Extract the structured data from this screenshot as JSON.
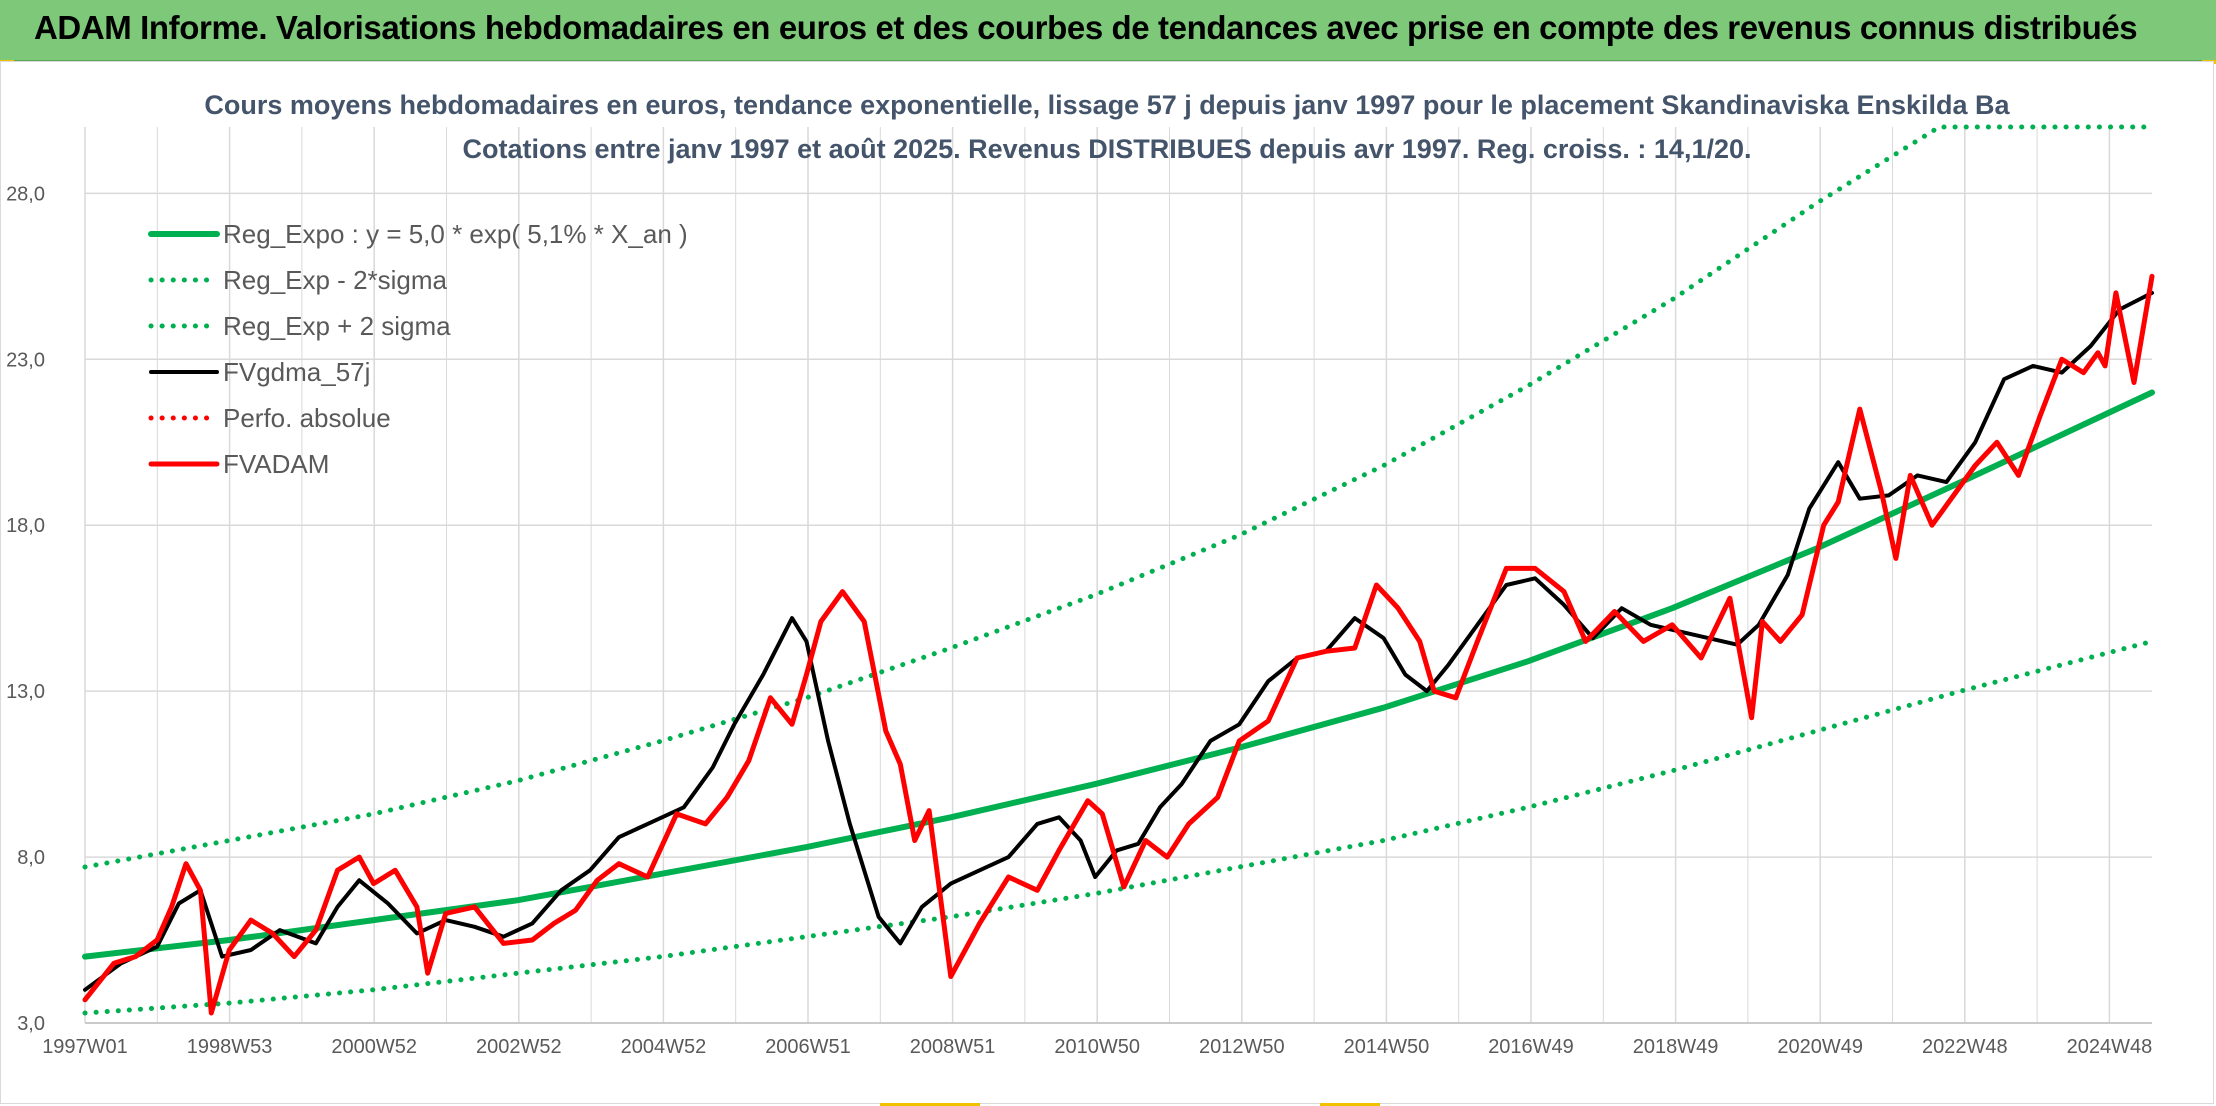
{
  "header": {
    "title": "ADAM Informe. Valorisations hebdomadaires en euros et des courbes de tendances avec prise en compte des revenus connus distribués"
  },
  "colors": {
    "header_bg": "#7ec87a",
    "trend": "#00b050",
    "smoothed": "#000000",
    "price": "#ff0000",
    "gridline": "#d9d9d9",
    "title_text": "#44546a"
  },
  "chart_data": {
    "type": "line",
    "title": "Cours moyens hebdomadaires en euros, tendance exponentielle, lissage 57 j depuis janv 1997 pour le placement Skandinaviska Enskilda Ba",
    "subtitle": "Cotations entre janv 1997 et août 2025. Revenus DISTRIBUES depuis avr 1997. Reg. croiss. : 14,1/20.",
    "x_tick_labels": [
      "1997W01",
      "1998W53",
      "2000W52",
      "2002W52",
      "2004W52",
      "2006W51",
      "2008W51",
      "2010W50",
      "2012W50",
      "2014W50",
      "2016W49",
      "2018W49",
      "2020W49",
      "2022W48",
      "2024W48"
    ],
    "y_tick_labels": [
      "3,0",
      "8,0",
      "13,0",
      "18,0",
      "23,0",
      "28,0"
    ],
    "ylim": [
      3,
      30
    ],
    "xlim": [
      1997.0,
      2025.65
    ],
    "grid": true,
    "legend_position": "top-left",
    "legend": [
      "Reg_Expo : y = 5,0 * exp( 5,1% *  X_an )",
      "Reg_Exp - 2*sigma",
      "Reg_Exp + 2 sigma",
      "FVgdma_57j",
      "Perfo. absolue",
      "FVADAM"
    ],
    "series": [
      {
        "name": "Reg_Expo : y = 5,0 * exp( 5,1% *  X_an )",
        "style": "solid",
        "color": "#00b050",
        "x": [
          1997.0,
          1999.0,
          2001.0,
          2003.0,
          2005.0,
          2007.0,
          2009.0,
          2011.0,
          2013.0,
          2015.0,
          2017.0,
          2019.0,
          2021.0,
          2023.0,
          2025.65
        ],
        "y": [
          5.0,
          5.5,
          6.1,
          6.7,
          7.5,
          8.3,
          9.2,
          10.2,
          11.3,
          12.5,
          13.9,
          15.5,
          17.3,
          19.3,
          22.0
        ]
      },
      {
        "name": "Reg_Exp - 2*sigma",
        "style": "dotted",
        "color": "#00b050",
        "x": [
          1997.0,
          1999.0,
          2001.0,
          2003.0,
          2005.0,
          2007.0,
          2009.0,
          2011.0,
          2013.0,
          2015.0,
          2017.0,
          2019.0,
          2021.0,
          2023.0,
          2025.65
        ],
        "y": [
          3.3,
          3.6,
          4.0,
          4.5,
          5.0,
          5.6,
          6.2,
          6.9,
          7.7,
          8.5,
          9.5,
          10.6,
          11.8,
          13.0,
          14.5
        ]
      },
      {
        "name": "Reg_Exp + 2 sigma",
        "style": "dotted",
        "color": "#00b050",
        "x": [
          1997.0,
          1999.0,
          2001.0,
          2003.0,
          2005.0,
          2007.0,
          2009.0,
          2011.0,
          2013.0,
          2015.0,
          2017.0,
          2019.0,
          2021.0,
          2022.7,
          2025.65
        ],
        "y": [
          7.7,
          8.5,
          9.3,
          10.3,
          11.5,
          12.8,
          14.3,
          15.9,
          17.7,
          19.8,
          22.2,
          24.8,
          27.7,
          30.0,
          30.0
        ]
      },
      {
        "name": "FVgdma_57j",
        "style": "solid",
        "color": "#000000",
        "x": [
          1997.0,
          1997.5,
          1998.0,
          1998.3,
          1998.6,
          1998.9,
          1999.3,
          1999.7,
          2000.2,
          2000.5,
          2000.8,
          2001.2,
          2001.6,
          2002.0,
          2002.4,
          2002.8,
          2003.2,
          2003.6,
          2004.0,
          2004.4,
          2004.8,
          2005.3,
          2005.7,
          2006.0,
          2006.4,
          2006.8,
          2007.0,
          2007.3,
          2007.6,
          2008.0,
          2008.3,
          2008.6,
          2009.0,
          2009.4,
          2009.8,
          2010.2,
          2010.5,
          2010.8,
          2011.0,
          2011.3,
          2011.6,
          2011.9,
          2012.2,
          2012.6,
          2013.0,
          2013.4,
          2013.8,
          2014.2,
          2014.6,
          2015.0,
          2015.3,
          2015.6,
          2015.9,
          2016.3,
          2016.7,
          2017.1,
          2017.5,
          2017.9,
          2018.3,
          2018.7,
          2019.1,
          2019.5,
          2019.9,
          2020.2,
          2020.6,
          2020.9,
          2021.3,
          2021.6,
          2022.0,
          2022.4,
          2022.8,
          2023.2,
          2023.6,
          2024.0,
          2024.4,
          2024.8,
          2025.2,
          2025.65
        ],
        "y": [
          4.0,
          4.8,
          5.3,
          6.6,
          7.0,
          5.0,
          5.2,
          5.8,
          5.4,
          6.5,
          7.3,
          6.6,
          5.7,
          6.1,
          5.9,
          5.6,
          6.0,
          7.0,
          7.6,
          8.6,
          9.0,
          9.5,
          10.7,
          12.0,
          13.5,
          15.2,
          14.5,
          11.5,
          9.0,
          6.2,
          5.4,
          6.5,
          7.2,
          7.6,
          8.0,
          9.0,
          9.2,
          8.5,
          7.4,
          8.2,
          8.4,
          9.5,
          10.2,
          11.5,
          12.0,
          13.3,
          14.0,
          14.2,
          15.2,
          14.6,
          13.5,
          13.0,
          13.8,
          15.0,
          16.2,
          16.4,
          15.6,
          14.6,
          15.5,
          15.0,
          14.8,
          14.6,
          14.4,
          15.0,
          16.5,
          18.5,
          19.9,
          18.8,
          18.9,
          19.5,
          19.3,
          20.5,
          22.4,
          22.8,
          22.6,
          23.4,
          24.5,
          25.0
        ]
      },
      {
        "name": "Perfo. absolue",
        "style": "dotted",
        "color": "#ff0000",
        "x": [],
        "y": []
      },
      {
        "name": "FVADAM",
        "style": "solid",
        "color": "#ff0000",
        "x": [
          1997.0,
          1997.4,
          1997.7,
          1998.0,
          1998.2,
          1998.4,
          1998.6,
          1998.75,
          1999.0,
          1999.3,
          1999.6,
          1999.9,
          2000.2,
          2000.5,
          2000.8,
          2001.0,
          2001.3,
          2001.6,
          2001.75,
          2002.0,
          2002.4,
          2002.8,
          2003.2,
          2003.5,
          2003.8,
          2004.1,
          2004.4,
          2004.8,
          2005.2,
          2005.6,
          2005.9,
          2006.2,
          2006.5,
          2006.8,
          2007.0,
          2007.2,
          2007.5,
          2007.8,
          2008.1,
          2008.3,
          2008.5,
          2008.7,
          2009.0,
          2009.4,
          2009.8,
          2010.2,
          2010.5,
          2010.9,
          2011.1,
          2011.4,
          2011.7,
          2012.0,
          2012.3,
          2012.7,
          2013.0,
          2013.4,
          2013.8,
          2014.2,
          2014.6,
          2014.9,
          2015.2,
          2015.5,
          2015.7,
          2016.0,
          2016.3,
          2016.7,
          2017.1,
          2017.5,
          2017.8,
          2018.2,
          2018.6,
          2019.0,
          2019.4,
          2019.8,
          2020.1,
          2020.25,
          2020.5,
          2020.8,
          2021.1,
          2021.3,
          2021.6,
          2021.9,
          2022.1,
          2022.3,
          2022.6,
          2022.9,
          2023.2,
          2023.5,
          2023.8,
          2024.1,
          2024.4,
          2024.7,
          2024.9,
          2025.0,
          2025.15,
          2025.4,
          2025.65
        ],
        "y": [
          3.7,
          4.8,
          5.0,
          5.5,
          6.5,
          7.8,
          7.0,
          3.3,
          5.2,
          6.1,
          5.7,
          5.0,
          5.8,
          7.6,
          8.0,
          7.2,
          7.6,
          6.5,
          4.5,
          6.3,
          6.5,
          5.4,
          5.5,
          6.0,
          6.4,
          7.3,
          7.8,
          7.4,
          9.3,
          9.0,
          9.8,
          10.9,
          12.8,
          12.0,
          13.5,
          15.1,
          16.0,
          15.1,
          11.8,
          10.8,
          8.5,
          9.4,
          4.4,
          6.0,
          7.4,
          7.0,
          8.2,
          9.7,
          9.3,
          7.1,
          8.5,
          8.0,
          9.0,
          9.8,
          11.5,
          12.1,
          14.0,
          14.2,
          14.3,
          16.2,
          15.5,
          14.5,
          13.0,
          12.8,
          14.5,
          16.7,
          16.7,
          16.0,
          14.5,
          15.4,
          14.5,
          15.0,
          14.0,
          15.8,
          12.2,
          15.1,
          14.5,
          15.3,
          18.0,
          18.7,
          21.5,
          19.0,
          17.0,
          19.5,
          18.0,
          18.9,
          19.8,
          20.5,
          19.5,
          21.3,
          23.0,
          22.6,
          23.2,
          22.8,
          25.0,
          22.3,
          25.5
        ]
      }
    ]
  }
}
